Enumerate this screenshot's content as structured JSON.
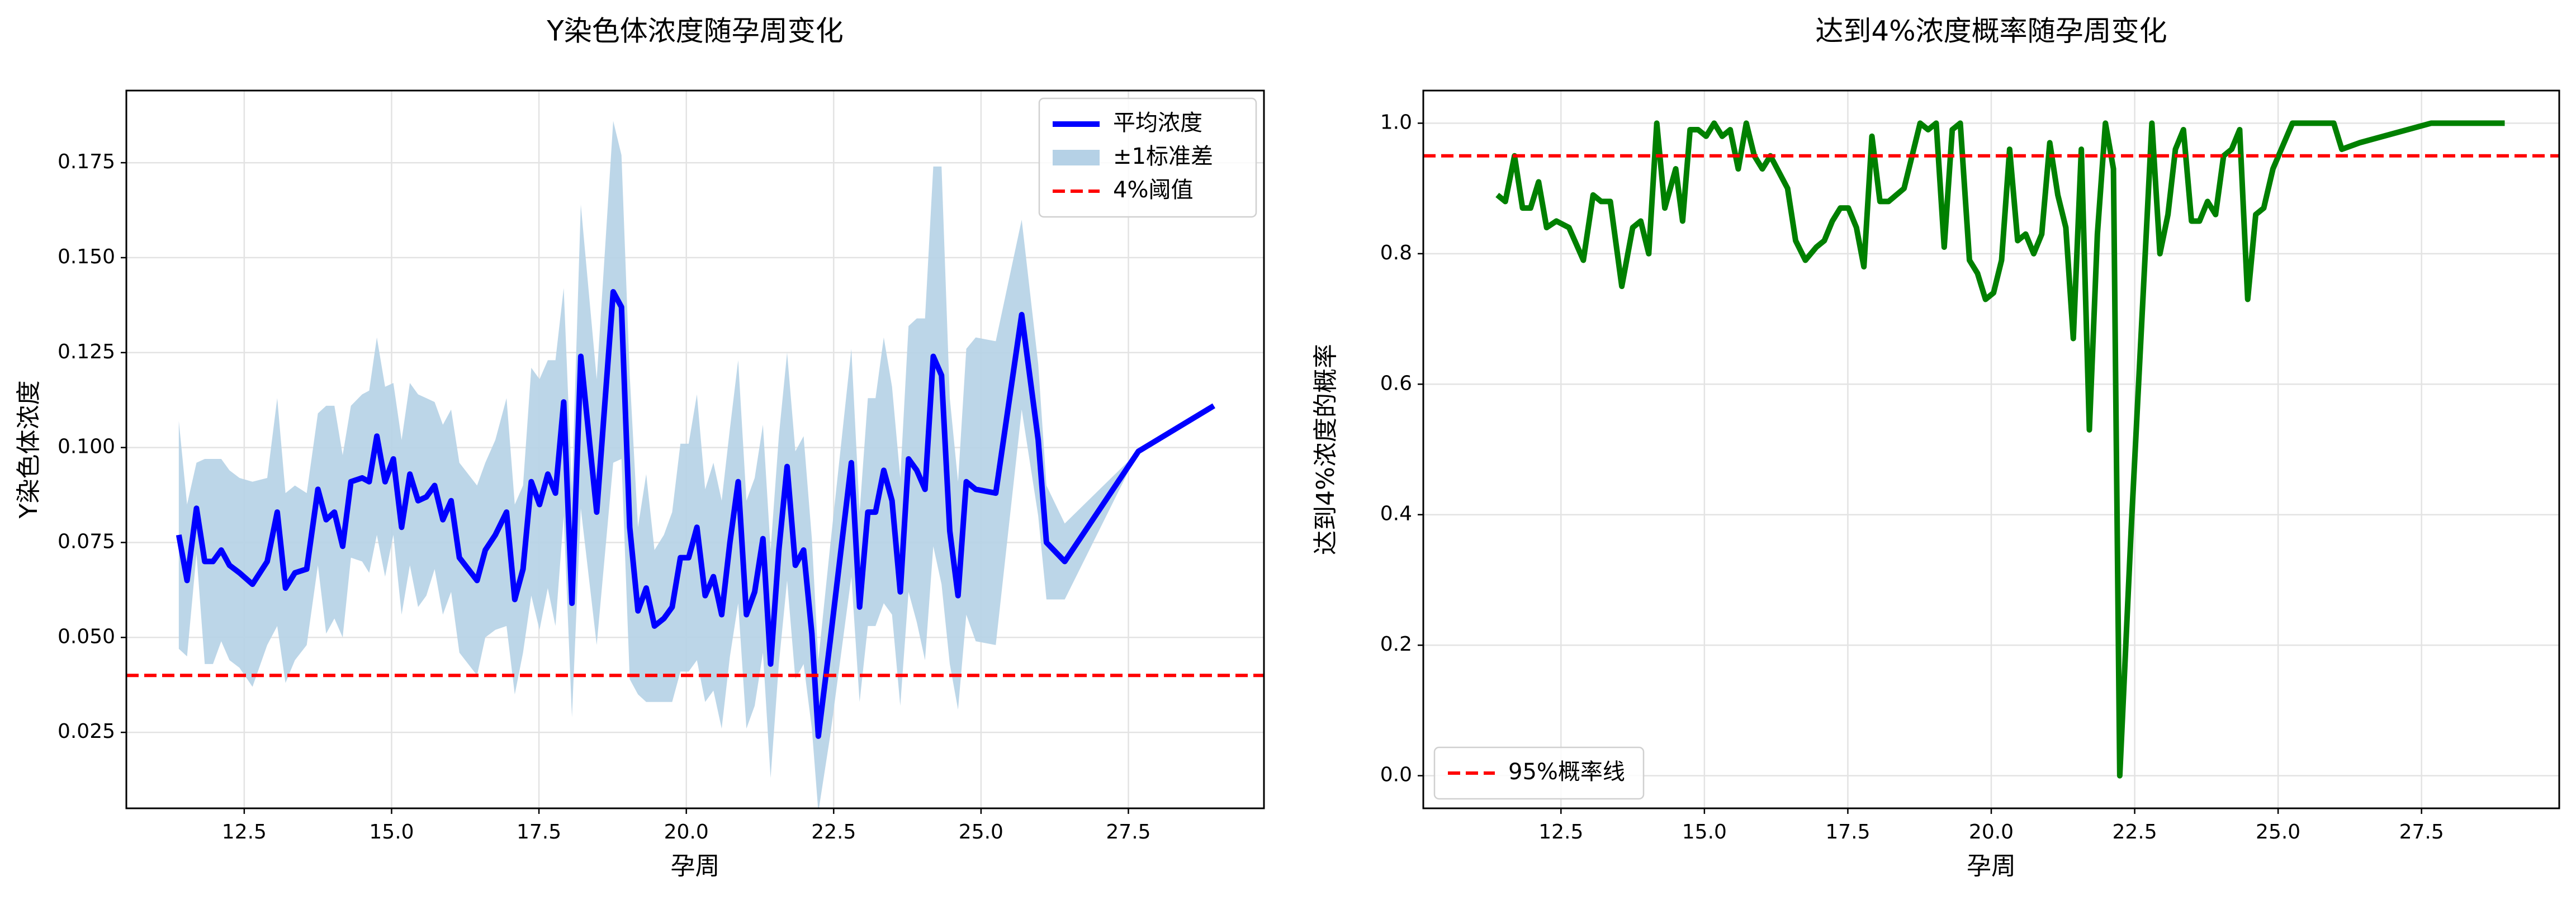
{
  "chart_data": [
    {
      "type": "line",
      "title": "Y染色体浓度随孕周变化",
      "x_label": "孕周",
      "y_label": "Y染色体浓度",
      "x": [
        11.39,
        11.53,
        11.69,
        11.83,
        11.97,
        12.11,
        12.25,
        12.42,
        12.64,
        12.89,
        13.06,
        13.2,
        13.36,
        13.56,
        13.75,
        13.89,
        14.03,
        14.17,
        14.31,
        14.5,
        14.62,
        14.75,
        14.89,
        15.03,
        15.17,
        15.31,
        15.45,
        15.59,
        15.73,
        15.87,
        16.01,
        16.15,
        16.45,
        16.59,
        16.76,
        16.95,
        17.09,
        17.23,
        17.37,
        17.51,
        17.65,
        17.78,
        17.92,
        18.06,
        18.21,
        18.48,
        18.76,
        18.9,
        19.04,
        19.18,
        19.32,
        19.46,
        19.62,
        19.76,
        19.9,
        20.04,
        20.18,
        20.32,
        20.46,
        20.6,
        20.74,
        20.88,
        21.02,
        21.16,
        21.3,
        21.43,
        21.57,
        21.71,
        21.85,
        21.99,
        22.13,
        22.24,
        22.44,
        22.8,
        22.94,
        23.08,
        23.21,
        23.35,
        23.49,
        23.63,
        23.77,
        23.91,
        24.05,
        24.19,
        24.33,
        24.47,
        24.61,
        24.75,
        24.91,
        25.25,
        25.69,
        25.97,
        26.11,
        26.42,
        27.67,
        28.95
      ],
      "series": [
        {
          "name": "平均浓度",
          "color": "#0000ff",
          "values": [
            0.077,
            0.065,
            0.084,
            0.07,
            0.07,
            0.073,
            0.069,
            0.067,
            0.064,
            0.07,
            0.083,
            0.063,
            0.067,
            0.068,
            0.089,
            0.081,
            0.083,
            0.074,
            0.091,
            0.092,
            0.091,
            0.103,
            0.091,
            0.097,
            0.079,
            0.093,
            0.086,
            0.087,
            0.09,
            0.081,
            0.086,
            0.071,
            0.065,
            0.073,
            0.077,
            0.083,
            0.06,
            0.068,
            0.091,
            0.085,
            0.093,
            0.088,
            0.112,
            0.059,
            0.124,
            0.083,
            0.141,
            0.137,
            0.079,
            0.057,
            0.063,
            0.053,
            0.055,
            0.058,
            0.071,
            0.071,
            0.079,
            0.061,
            0.066,
            0.056,
            0.075,
            0.091,
            0.056,
            0.062,
            0.076,
            0.043,
            0.073,
            0.095,
            0.069,
            0.073,
            0.051,
            0.024,
            0.049,
            0.096,
            0.058,
            0.083,
            0.083,
            0.094,
            0.086,
            0.062,
            0.097,
            0.094,
            0.089,
            0.124,
            0.119,
            0.078,
            0.061,
            0.091,
            0.089,
            0.088,
            0.135,
            0.102,
            0.075,
            0.07,
            0.099,
            0.111
          ]
        },
        {
          "name": "±1标准差",
          "color": "#b5d1e6",
          "kind": "band",
          "values": [
            0.03,
            0.02,
            0.012,
            0.027,
            0.027,
            0.024,
            0.025,
            0.025,
            0.027,
            0.022,
            0.03,
            0.025,
            0.023,
            0.02,
            0.02,
            0.03,
            0.028,
            0.024,
            0.02,
            0.022,
            0.024,
            0.026,
            0.025,
            0.02,
            0.023,
            0.024,
            0.028,
            0.026,
            0.022,
            0.025,
            0.024,
            0.025,
            0.025,
            0.023,
            0.025,
            0.03,
            0.025,
            0.022,
            0.03,
            0.033,
            0.03,
            0.035,
            0.03,
            0.03,
            0.04,
            0.035,
            0.045,
            0.04,
            0.04,
            0.022,
            0.03,
            0.02,
            0.022,
            0.025,
            0.03,
            0.03,
            0.035,
            0.028,
            0.03,
            0.03,
            0.03,
            0.032,
            0.03,
            0.03,
            0.03,
            0.03,
            0.03,
            0.03,
            0.03,
            0.03,
            0.025,
            0.02,
            0.025,
            0.03,
            0.025,
            0.03,
            0.03,
            0.035,
            0.03,
            0.03,
            0.035,
            0.04,
            0.045,
            0.05,
            0.055,
            0.035,
            0.03,
            0.035,
            0.04,
            0.04,
            0.025,
            0.02,
            0.015,
            0.01,
            0,
            0
          ]
        }
      ],
      "reference": {
        "name": "4%阈值",
        "value": 0.04,
        "color": "#ff0000"
      },
      "xlim": [
        10.5,
        29.8
      ],
      "ylim": [
        0.005,
        0.194
      ],
      "xticks": [
        {
          "value": 12.5,
          "label": "12.5"
        },
        {
          "value": 15,
          "label": "15.0"
        },
        {
          "value": 17.5,
          "label": "17.5"
        },
        {
          "value": 20,
          "label": "20.0"
        },
        {
          "value": 22.5,
          "label": "22.5"
        },
        {
          "value": 25,
          "label": "25.0"
        },
        {
          "value": 27.5,
          "label": "27.5"
        }
      ],
      "yticks": [
        {
          "value": 0.025,
          "label": "0.025"
        },
        {
          "value": 0.05,
          "label": "0.050"
        },
        {
          "value": 0.075,
          "label": "0.075"
        },
        {
          "value": 0.1,
          "label": "0.100"
        },
        {
          "value": 0.125,
          "label": "0.125"
        },
        {
          "value": 0.15,
          "label": "0.150"
        },
        {
          "value": 0.175,
          "label": "0.175"
        }
      ],
      "grid": true,
      "legend": "upper-right"
    },
    {
      "type": "line",
      "title": "达到4%浓度概率随孕周变化",
      "x_label": "孕周",
      "y_label": "达到4%浓度的概率",
      "x": [
        11.39,
        11.53,
        11.69,
        11.83,
        11.97,
        12.11,
        12.25,
        12.42,
        12.64,
        12.89,
        13.06,
        13.2,
        13.36,
        13.56,
        13.75,
        13.89,
        14.03,
        14.17,
        14.31,
        14.5,
        14.62,
        14.75,
        14.89,
        15.03,
        15.17,
        15.31,
        15.45,
        15.59,
        15.73,
        15.87,
        16.01,
        16.15,
        16.45,
        16.59,
        16.76,
        16.95,
        17.09,
        17.23,
        17.37,
        17.51,
        17.65,
        17.78,
        17.92,
        18.06,
        18.21,
        18.48,
        18.76,
        18.9,
        19.04,
        19.18,
        19.32,
        19.46,
        19.62,
        19.76,
        19.9,
        20.04,
        20.18,
        20.32,
        20.46,
        20.6,
        20.74,
        20.88,
        21.02,
        21.16,
        21.3,
        21.43,
        21.57,
        21.71,
        21.85,
        21.99,
        22.13,
        22.24,
        22.44,
        22.8,
        22.94,
        23.08,
        23.21,
        23.35,
        23.49,
        23.63,
        23.77,
        23.91,
        24.05,
        24.19,
        24.33,
        24.47,
        24.61,
        24.75,
        24.91,
        25.25,
        25.69,
        25.97,
        26.11,
        26.42,
        27.67,
        28.95
      ],
      "series": [
        {
          "name": "达到4%浓度的概率",
          "color": "#008000",
          "values": [
            0.89,
            0.88,
            0.95,
            0.87,
            0.87,
            0.91,
            0.84,
            0.85,
            0.84,
            0.79,
            0.89,
            0.88,
            0.88,
            0.75,
            0.84,
            0.85,
            0.8,
            1.0,
            0.87,
            0.93,
            0.85,
            0.99,
            0.99,
            0.98,
            1.0,
            0.98,
            0.99,
            0.93,
            1.0,
            0.95,
            0.93,
            0.95,
            0.9,
            0.82,
            0.79,
            0.81,
            0.82,
            0.85,
            0.87,
            0.87,
            0.84,
            0.78,
            0.98,
            0.88,
            0.88,
            0.9,
            1.0,
            0.99,
            1.0,
            0.81,
            0.99,
            1.0,
            0.79,
            0.77,
            0.73,
            0.74,
            0.79,
            0.96,
            0.82,
            0.83,
            0.8,
            0.83,
            0.97,
            0.89,
            0.84,
            0.67,
            0.96,
            0.53,
            0.83,
            1.0,
            0.93,
            0.0,
            0.38,
            1.0,
            0.8,
            0.86,
            0.96,
            0.99,
            0.85,
            0.85,
            0.88,
            0.86,
            0.95,
            0.96,
            0.99,
            0.73,
            0.86,
            0.87,
            0.93,
            1.0,
            1.0,
            1.0,
            0.96,
            0.97,
            1.0,
            1.0
          ]
        }
      ],
      "reference": {
        "name": "95%概率线",
        "value": 0.95,
        "color": "#ff0000"
      },
      "xlim": [
        10.1,
        29.9
      ],
      "ylim": [
        -0.05,
        1.05
      ],
      "xticks": [
        {
          "value": 12.5,
          "label": "12.5"
        },
        {
          "value": 15,
          "label": "15.0"
        },
        {
          "value": 17.5,
          "label": "17.5"
        },
        {
          "value": 20,
          "label": "20.0"
        },
        {
          "value": 22.5,
          "label": "22.5"
        },
        {
          "value": 25,
          "label": "25.0"
        },
        {
          "value": 27.5,
          "label": "27.5"
        }
      ],
      "yticks": [
        {
          "value": 0,
          "label": "0.0"
        },
        {
          "value": 0.2,
          "label": "0.2"
        },
        {
          "value": 0.4,
          "label": "0.4"
        },
        {
          "value": 0.6,
          "label": "0.6"
        },
        {
          "value": 0.8,
          "label": "0.8"
        },
        {
          "value": 1,
          "label": "1.0"
        }
      ],
      "grid": true,
      "legend": "lower-left"
    }
  ]
}
